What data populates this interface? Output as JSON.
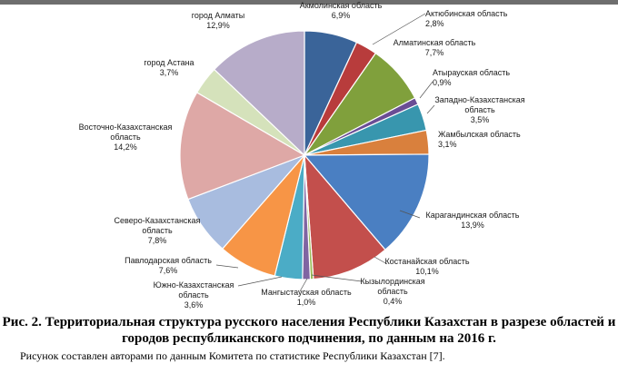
{
  "chart_data": {
    "type": "pie",
    "start_angle_deg": 0,
    "slices": [
      {
        "name": "Акмолинская область",
        "value": 6.9,
        "label": "6,9%",
        "color": "#3a6499"
      },
      {
        "name": "Актюбинская область",
        "value": 2.8,
        "label": "2,8%",
        "color": "#b83c3c"
      },
      {
        "name": "Алматинская область",
        "value": 7.7,
        "label": "7,7%",
        "color": "#80a03c"
      },
      {
        "name": "Атырауская область",
        "value": 0.9,
        "label": "0,9%",
        "color": "#6a4d95"
      },
      {
        "name": "Западно-Казахстанская область",
        "value": 3.5,
        "label": "3,5%",
        "color": "#3896ae"
      },
      {
        "name": "Жамбылская область",
        "value": 3.1,
        "label": "3,1%",
        "color": "#d9803d"
      },
      {
        "name": "Карагандинская область",
        "value": 13.9,
        "label": "13,9%",
        "color": "#4a7fc2"
      },
      {
        "name": "Костанайская область",
        "value": 10.1,
        "label": "10,1%",
        "color": "#c34f4c"
      },
      {
        "name": "Кызылординская область",
        "value": 0.4,
        "label": "0,4%",
        "color": "#9abb59"
      },
      {
        "name": "Мангыстауская область",
        "value": 1.0,
        "label": "1,0%",
        "color": "#8064a2"
      },
      {
        "name": "Южно-Казахстанская область",
        "value": 3.6,
        "label": "3,6%",
        "color": "#4bacc6"
      },
      {
        "name": "Павлодарская область",
        "value": 7.6,
        "label": "7,6%",
        "color": "#f79546"
      },
      {
        "name": "Северо-Казахстанская область",
        "value": 7.8,
        "label": "7,8%",
        "color": "#a8bcdf"
      },
      {
        "name": "Восточно-Казахстанская область",
        "value": 14.2,
        "label": "14,2%",
        "color": "#dea8a6"
      },
      {
        "name": "город Астана",
        "value": 3.7,
        "label": "3,7%",
        "color": "#d5e2bb"
      },
      {
        "name": "город Алматы",
        "value": 12.9,
        "label": "12,9%",
        "color": "#b7acc9"
      }
    ]
  },
  "caption": "Рис. 2. Территориальная структура русского населения Республики Казахстан в разрезе областей и городов республиканского подчинения, по данным на 2016 г.",
  "source": "Рисунок составлен авторами по данным Комитета по статистике Республики Казахстан [7]."
}
